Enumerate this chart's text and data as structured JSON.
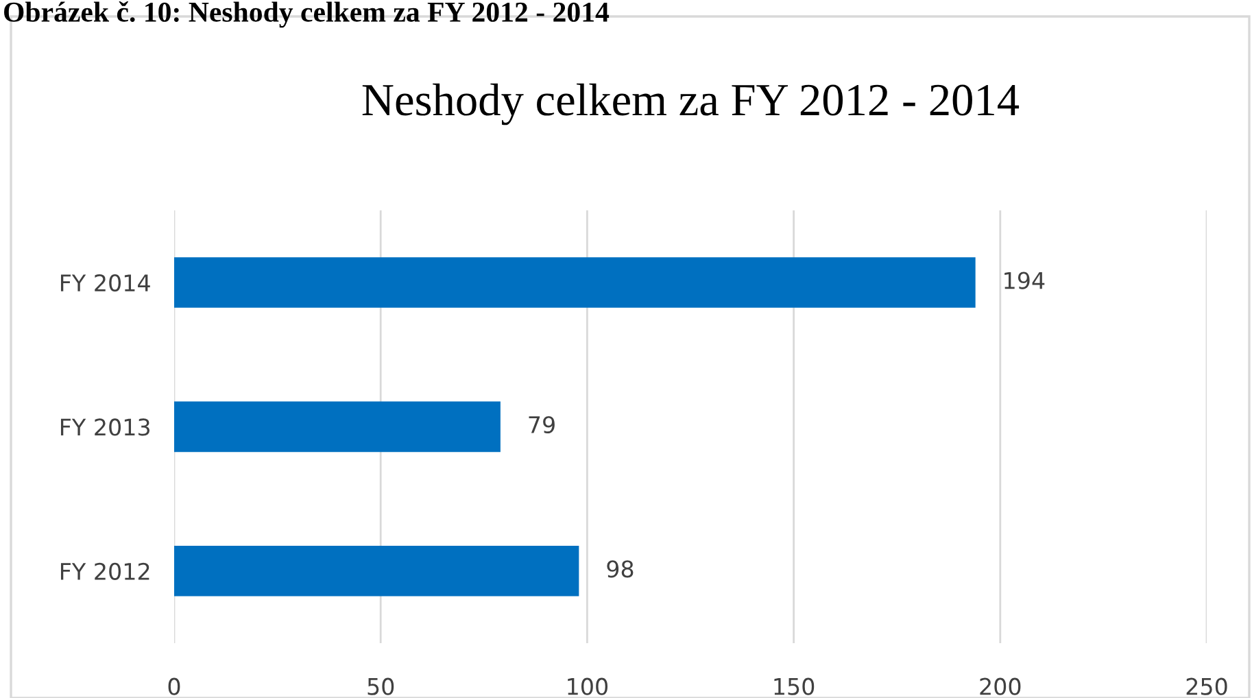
{
  "chart_data": {
    "type": "bar",
    "orientation": "horizontal",
    "title": "Neshody celkem za FY 2012 - 2014",
    "annotations": [
      "Obrázek č. 10: Neshody celkem za FY 2012 - 2014"
    ],
    "categories": [
      "FY 2014",
      "FY 2013",
      "FY 2012"
    ],
    "values": [
      194,
      79,
      98
    ],
    "color": "#0070c0",
    "data_labels": true,
    "xlim": [
      0,
      250
    ],
    "xticks": [
      0,
      50,
      100,
      150,
      200,
      250
    ],
    "grid": "x",
    "legend": false
  }
}
